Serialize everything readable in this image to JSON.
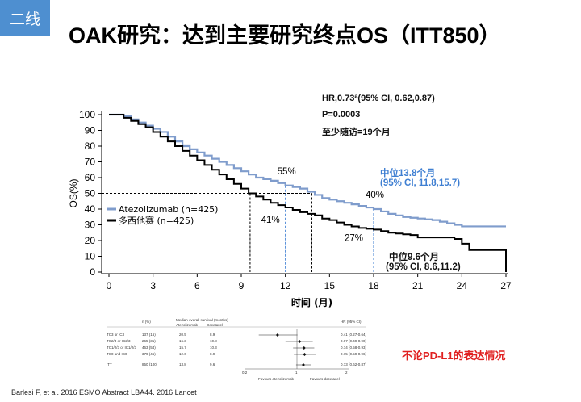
{
  "tag": "二线",
  "title": "OAK研究：达到主要研究终点OS（ITT850）",
  "stats": {
    "hr": "HR,0.73ª(95% CI, 0.62,0.87)",
    "p": "P=0.0003",
    "followup": "至少随访=19个月"
  },
  "median_atezo": {
    "line1": "中位13.8个月",
    "line2": "(95% CI, 11.8,15.7)"
  },
  "median_doce": {
    "line1": "中位9.6个月",
    "line2": "(95% CI, 8.6,11.2)"
  },
  "colors": {
    "atezolizumab": "#7f9ccc",
    "docetaxel": "#000000",
    "tag_bg": "#4e8fd0",
    "median_atezo": "#3f7fd2",
    "subgroup_note": "#e02020"
  },
  "subgroup_note": "不论PD-L1的表达情况",
  "forest": {
    "header_n": "n (%)",
    "header_mos": "Median overall survival (months)",
    "header_arm1": "Atezolizumab",
    "header_arm2": "Docetaxel",
    "header_hr": "HR (95% CI)",
    "rows": [
      {
        "group": "TC3 or IC3",
        "n": "137 (16)",
        "atezo": "20.5",
        "doce": "8.9",
        "hr": "0.41 (0.27-0.64)"
      },
      {
        "group": "TC2/3 or IC2/3",
        "n": "265 (31)",
        "atezo": "16.3",
        "doce": "10.8",
        "hr": "0.67 (0.49-0.90)"
      },
      {
        "group": "TC1/2/3 or IC1/2/3",
        "n": "463 (54)",
        "atezo": "15.7",
        "doce": "10.3",
        "hr": "0.74 (0.58-0.93)"
      },
      {
        "group": "TC0 and IC0",
        "n": "379 (45)",
        "atezo": "12.6",
        "doce": "8.9",
        "hr": "0.75 (0.59-0.96)"
      },
      {
        "group": "ITT",
        "n": "850 (100)",
        "atezo": "13.8",
        "doce": "9.6",
        "hr": "0.73 (0.62-0.87)"
      }
    ],
    "axis_ticks": [
      "0.2",
      "1",
      "2"
    ],
    "favours_left": "Favours atezolizumab",
    "favours_right": "Favours docetaxel"
  },
  "citation": "Barlesi F, et al. 2016 ESMO Abstract LBA44.  2016 Lancet",
  "chart_data": {
    "type": "line",
    "xlabel": "时间 (月)",
    "ylabel": "OS(%)",
    "xlim": [
      0,
      27
    ],
    "ylim": [
      0,
      100
    ],
    "xticks": [
      0,
      3,
      6,
      9,
      12,
      15,
      18,
      21,
      24,
      27
    ],
    "yticks": [
      0,
      10,
      20,
      30,
      40,
      50,
      60,
      70,
      80,
      90,
      100
    ],
    "legend_position": "left",
    "series": [
      {
        "name": "Atezolizumab (n=425)",
        "color": "#7f9ccc",
        "x": [
          0,
          0.7,
          1,
          1.5,
          2,
          2.5,
          3,
          3.5,
          4,
          4.5,
          5,
          5.5,
          6,
          6.5,
          7,
          7.5,
          8,
          8.5,
          9,
          9.5,
          10,
          10.5,
          11,
          11.5,
          12,
          12.5,
          13,
          13.5,
          14,
          14.5,
          15,
          15.5,
          16,
          16.5,
          17,
          17.5,
          18,
          18.5,
          19,
          19.5,
          20,
          20.5,
          21,
          21.5,
          22,
          22.5,
          23,
          23.5,
          24,
          24.5,
          25,
          27
        ],
        "y": [
          100,
          100,
          99,
          97,
          95,
          93,
          91,
          89,
          86,
          83,
          80,
          78,
          76,
          74,
          72,
          70,
          68,
          66,
          64,
          62,
          60,
          59,
          58,
          56.5,
          55,
          54,
          53,
          51,
          49,
          47,
          46,
          45,
          44,
          43,
          42,
          41,
          40,
          38.5,
          37,
          36,
          35,
          34.5,
          34,
          33.5,
          33,
          32,
          31,
          30,
          29,
          29,
          29,
          29
        ]
      },
      {
        "name": "多西他赛 (n=425)",
        "color": "#000000",
        "x": [
          0,
          0.7,
          1,
          1.5,
          2,
          2.5,
          3,
          3.5,
          4,
          4.5,
          5,
          5.5,
          6,
          6.5,
          7,
          7.5,
          8,
          8.5,
          9,
          9.5,
          10,
          10.5,
          11,
          11.5,
          12,
          12.5,
          13,
          13.5,
          14,
          14.5,
          15,
          15.5,
          16,
          16.5,
          17,
          17.5,
          18,
          18.5,
          19,
          19.5,
          20,
          20.5,
          21,
          21.5,
          22,
          22.5,
          23,
          23.5,
          24,
          24.5,
          25,
          26.5,
          27
        ],
        "y": [
          100,
          100,
          98,
          96,
          94,
          92,
          89,
          86,
          83,
          80,
          77,
          74,
          71,
          68,
          65,
          62,
          59,
          56,
          53,
          50,
          48,
          46,
          44,
          42.5,
          41,
          39.5,
          38,
          37,
          36,
          34,
          33,
          31.5,
          30,
          29,
          28,
          27.5,
          27,
          26,
          25,
          24.5,
          24,
          23.5,
          22,
          22,
          22,
          22,
          22,
          21,
          18,
          14,
          14,
          14,
          0
        ]
      }
    ],
    "annotations": [
      {
        "text": "55%",
        "x": 12,
        "y": 55
      },
      {
        "text": "40%",
        "x": 18,
        "y": 40
      },
      {
        "text": "41%",
        "x": 12,
        "y": 41
      },
      {
        "text": "27%",
        "x": 18,
        "y": 27
      }
    ],
    "reference_lines": {
      "median_y": 50,
      "median_atezo_x": 13.8,
      "median_doce_x": 9.6,
      "landmark_12_x": 12,
      "landmark_18_x": 18
    }
  }
}
